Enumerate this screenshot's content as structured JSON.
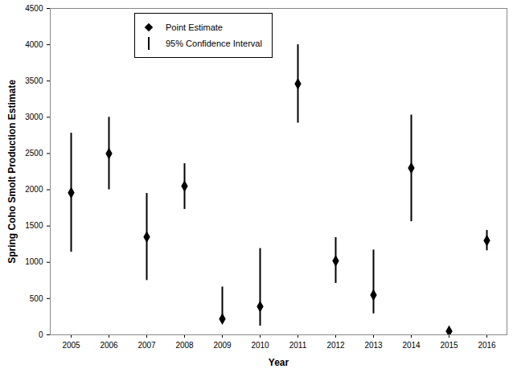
{
  "chart_data": {
    "type": "scatter",
    "x_label": "Year",
    "y_label": "Spring Coho Smolt Production Estimate",
    "categories": [
      "2005",
      "2006",
      "2007",
      "2008",
      "2009",
      "2010",
      "2011",
      "2012",
      "2013",
      "2014",
      "2015",
      "2016"
    ],
    "series": [
      {
        "name": "Point Estimate",
        "marker": "diamond",
        "color": "#000000",
        "values": [
          1960,
          2500,
          1350,
          2050,
          220,
          390,
          3460,
          1020,
          550,
          2300,
          50,
          1300
        ]
      }
    ],
    "error_bars": {
      "name": "95% Confidence Interval",
      "color": "#000000",
      "low": [
        1140,
        2000,
        750,
        1730,
        170,
        120,
        2920,
        710,
        290,
        1560,
        null,
        1160
      ],
      "high": [
        2780,
        3000,
        1950,
        2360,
        660,
        1190,
        4000,
        1340,
        1170,
        3030,
        null,
        1440
      ]
    },
    "ylim": [
      0,
      4500
    ],
    "yticks": [
      0,
      500,
      1000,
      1500,
      2000,
      2500,
      3000,
      3500,
      4000,
      4500
    ],
    "grid": false,
    "legend": "top-left"
  }
}
